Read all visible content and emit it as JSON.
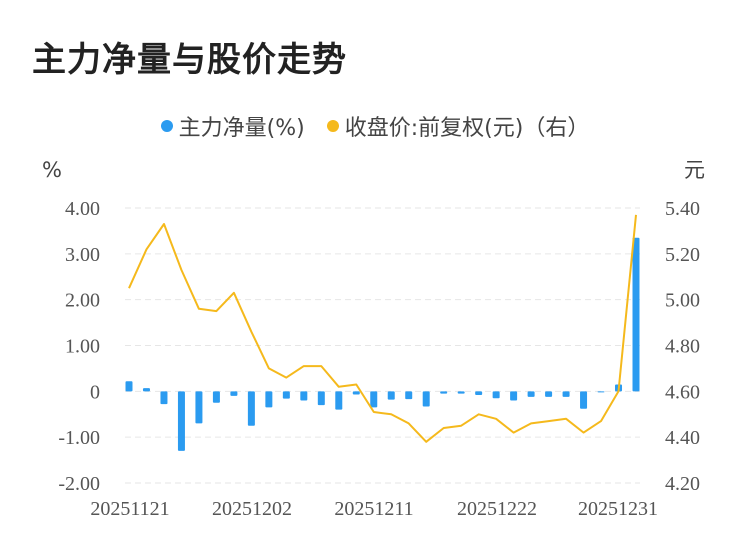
{
  "title": "主力净量与股价走势",
  "legend": [
    {
      "label": "主力净量(%)",
      "color": "#2b9bf0"
    },
    {
      "label": "收盘价:前复权(元)（右）",
      "color": "#f5b91c"
    }
  ],
  "chart_data": {
    "type": "bar+line",
    "left_axis_unit": "%",
    "right_axis_unit": "元",
    "left_ticks": [
      "4.00",
      "3.00",
      "2.00",
      "1.00",
      "0",
      "-1.00",
      "-2.00"
    ],
    "right_ticks": [
      "5.40",
      "5.20",
      "5.00",
      "4.80",
      "4.60",
      "4.40",
      "4.20"
    ],
    "x_tick_labels": [
      "20251121",
      "20251202",
      "20251211",
      "20251222",
      "20251231"
    ],
    "ylim_left": [
      -2,
      4
    ],
    "ylim_right": [
      4.2,
      5.4
    ],
    "grid": true,
    "series": [
      {
        "name": "主力净量(%)",
        "type": "bar",
        "values": [
          0.22,
          0.07,
          -0.28,
          -1.3,
          -0.7,
          -0.25,
          -0.1,
          -0.75,
          -0.35,
          -0.16,
          -0.2,
          -0.3,
          -0.4,
          -0.07,
          -0.35,
          -0.18,
          -0.17,
          -0.33,
          -0.05,
          -0.05,
          -0.08,
          -0.15,
          -0.2,
          -0.12,
          -0.12,
          -0.12,
          -0.38,
          -0.02,
          0.15,
          3.35
        ]
      },
      {
        "name": "收盘价:前复权(元)（右）",
        "type": "line",
        "values": [
          5.05,
          5.22,
          5.33,
          5.13,
          4.96,
          4.95,
          5.03,
          4.86,
          4.7,
          4.66,
          4.71,
          4.71,
          4.62,
          4.63,
          4.51,
          4.5,
          4.46,
          4.38,
          4.44,
          4.45,
          4.5,
          4.48,
          4.42,
          4.46,
          4.47,
          4.48,
          4.42,
          4.47,
          4.6,
          5.37
        ]
      }
    ]
  }
}
